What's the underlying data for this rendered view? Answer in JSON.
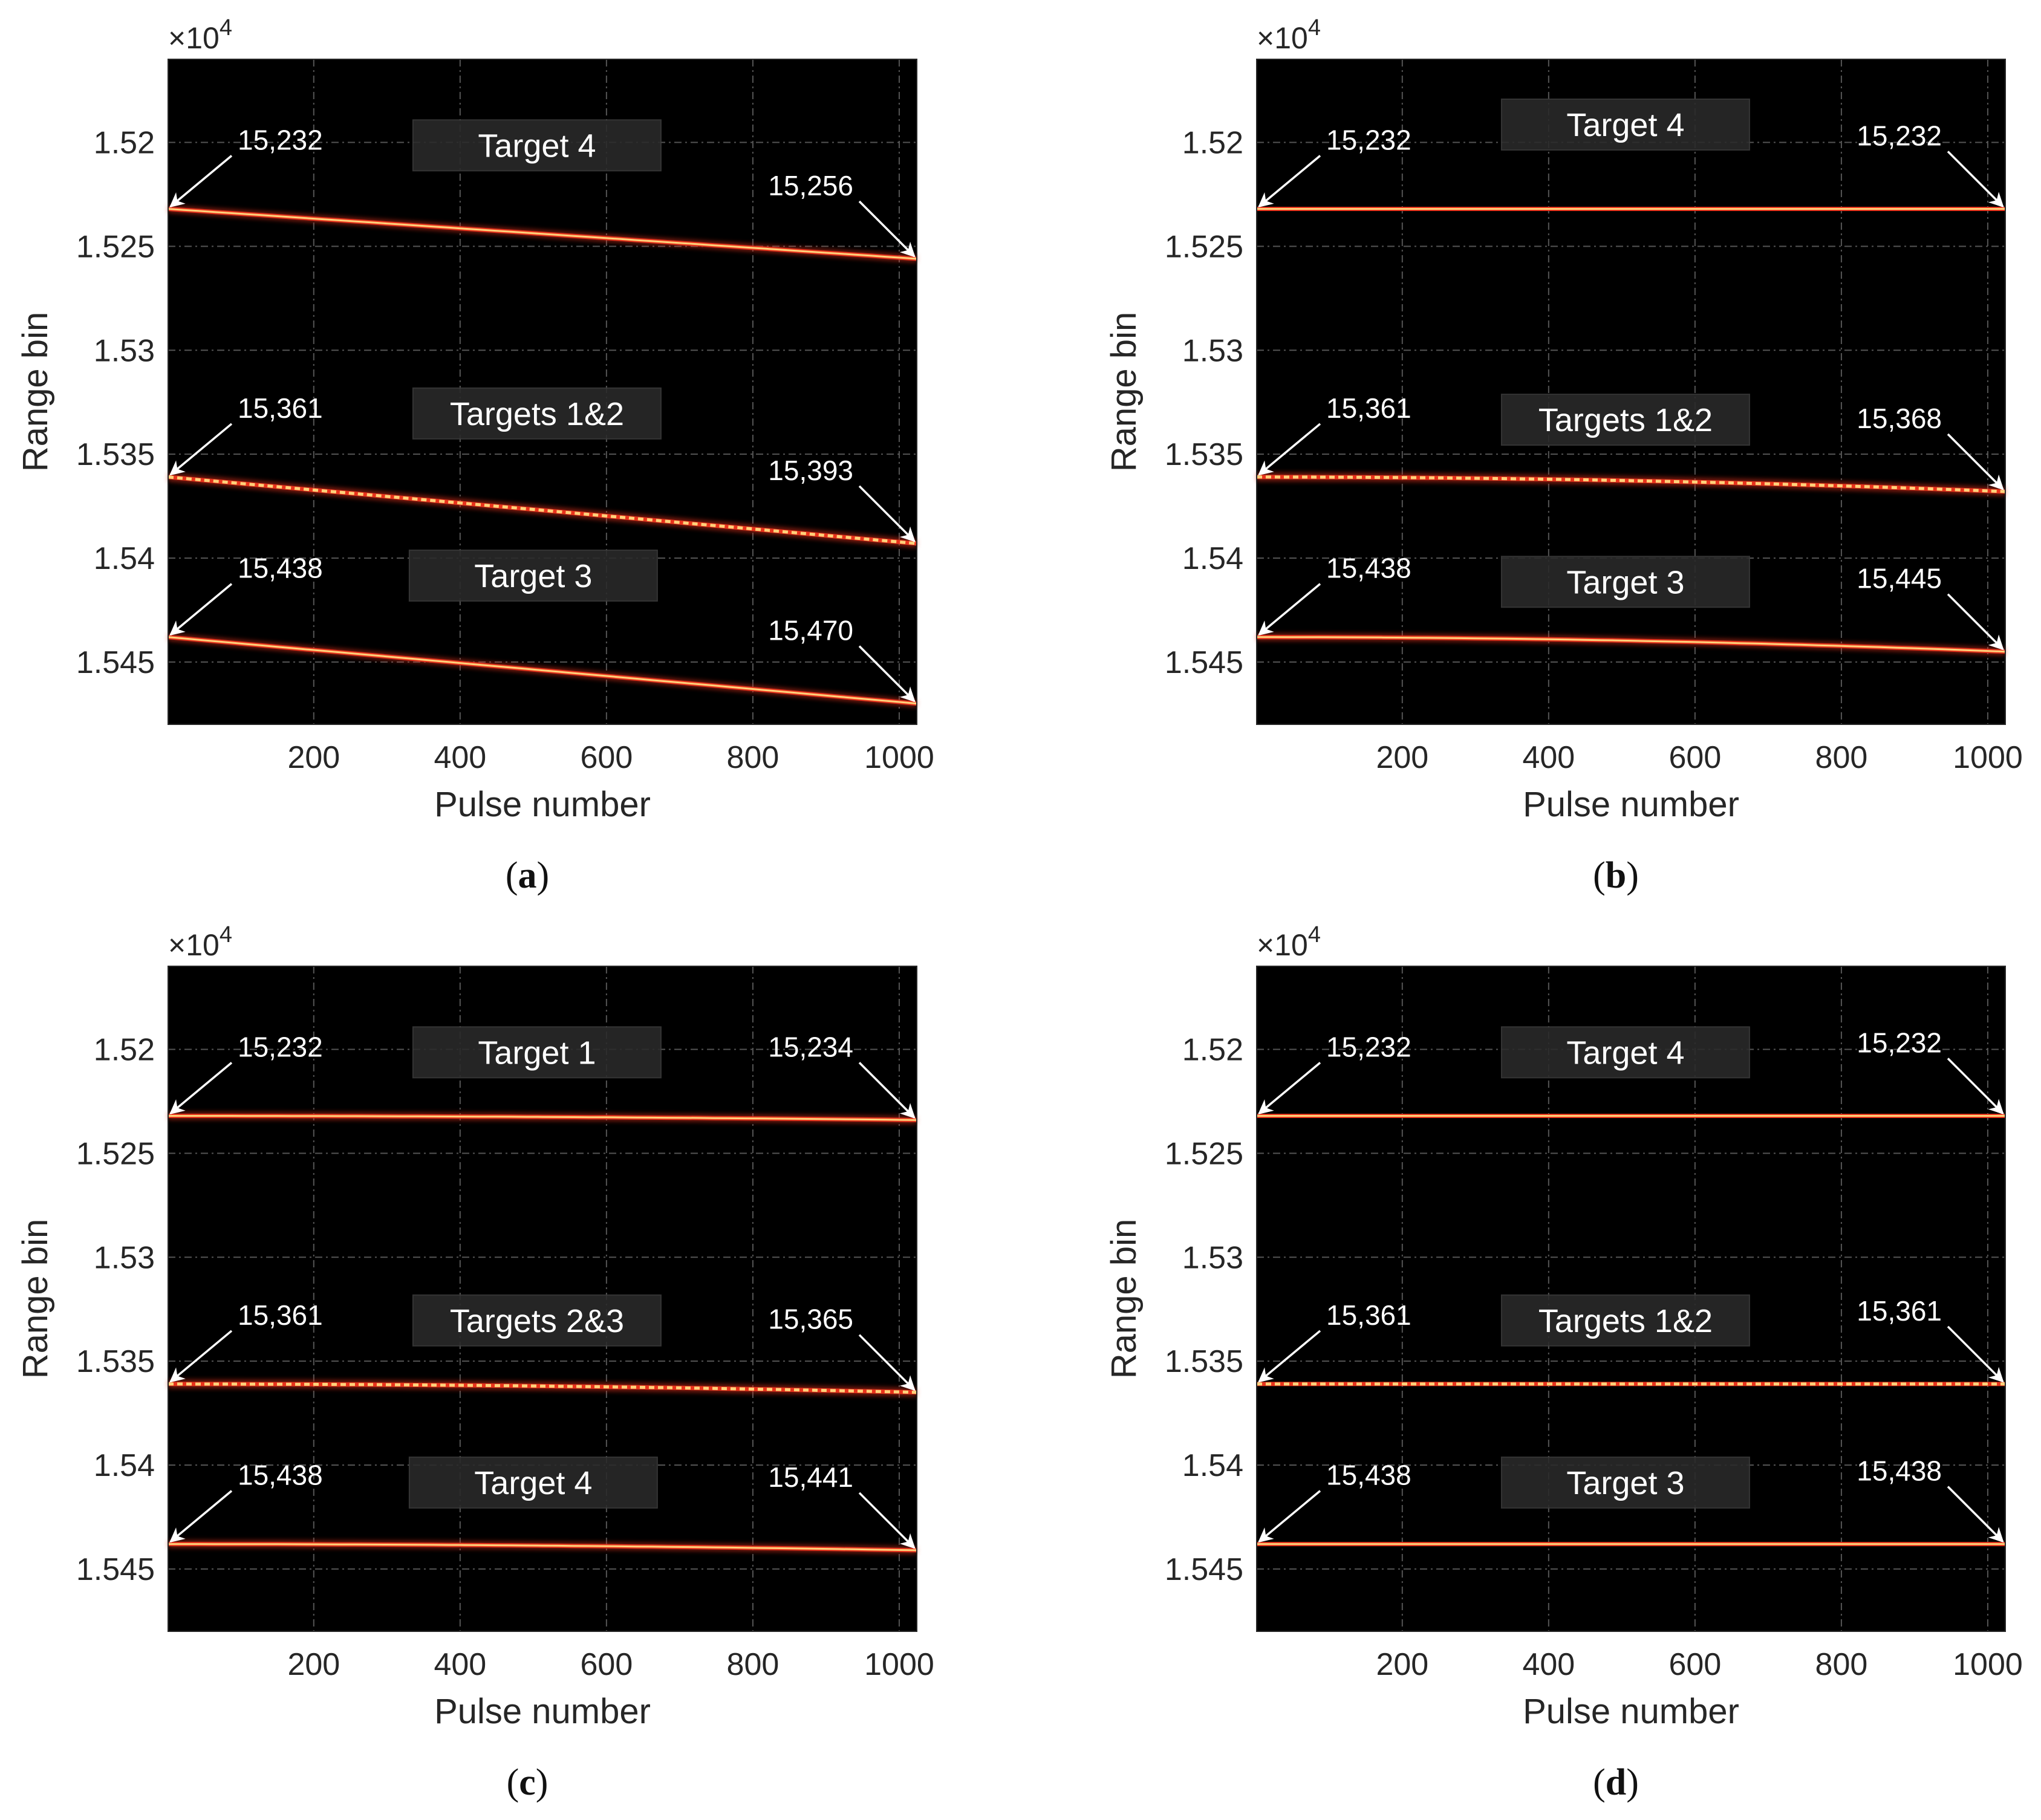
{
  "figure": {
    "colors": {
      "background": "#000000",
      "line_core": "#ffd27a",
      "line_glow": "#e8331c",
      "grid": "#6a6a6a",
      "text_on_dark": "#ffffff",
      "target_box": "#2a2a2a"
    }
  },
  "chart_data": [
    {
      "type": "heatmap",
      "id": "a",
      "caption_letter": "a",
      "xlabel": "Pulse number",
      "ylabel": "Range bin",
      "xlim": [
        1,
        1024
      ],
      "ylim": [
        15160,
        15480
      ],
      "y_exponent_label": "×10",
      "y_exponent_power": "4",
      "xticks": [
        200,
        400,
        600,
        800,
        1000
      ],
      "xtick_labels": [
        "200",
        "400",
        "600",
        "800",
        "1000"
      ],
      "yticks": [
        15200,
        15250,
        15300,
        15350,
        15400,
        15450
      ],
      "ytick_labels": [
        "1.52",
        "1.525",
        "1.53",
        "1.535",
        "1.54",
        "1.545"
      ],
      "tracks": [
        {
          "name": "Target 4",
          "start_bin": 15232,
          "end_bin": 15256,
          "start_label": "15,232",
          "end_label": "15,256",
          "label_pulse": 505,
          "label_bin": 15202,
          "style": "solid",
          "curve": 1
        },
        {
          "name": "Targets 1&2",
          "start_bin": 15361,
          "end_bin": 15393,
          "start_label": "15,361",
          "end_label": "15,393",
          "label_pulse": 505,
          "label_bin": 15331,
          "style": "dotted",
          "curve": 1
        },
        {
          "name": "Target 3",
          "start_bin": 15438,
          "end_bin": 15470,
          "start_label": "15,438",
          "end_label": "15,470",
          "label_pulse": 500,
          "label_bin": 15409,
          "style": "solid",
          "curve": 1
        }
      ]
    },
    {
      "type": "heatmap",
      "id": "b",
      "caption_letter": "b",
      "xlabel": "Pulse number",
      "ylabel": "Range bin",
      "xlim": [
        1,
        1024
      ],
      "ylim": [
        15160,
        15480
      ],
      "y_exponent_label": "×10",
      "y_exponent_power": "4",
      "xticks": [
        200,
        400,
        600,
        800,
        1000
      ],
      "xtick_labels": [
        "200",
        "400",
        "600",
        "800",
        "1000"
      ],
      "yticks": [
        15200,
        15250,
        15300,
        15350,
        15400,
        15450
      ],
      "ytick_labels": [
        "1.52",
        "1.525",
        "1.53",
        "1.535",
        "1.54",
        "1.545"
      ],
      "tracks": [
        {
          "name": "Target 4",
          "start_bin": 15232,
          "end_bin": 15232,
          "start_label": "15,232",
          "end_label": "15,232",
          "label_pulse": 505,
          "label_bin": 15192,
          "style": "solid",
          "curve": 2
        },
        {
          "name": "Targets 1&2",
          "start_bin": 15361,
          "end_bin": 15368,
          "start_label": "15,361",
          "end_label": "15,368",
          "label_pulse": 505,
          "label_bin": 15334,
          "style": "dotted",
          "curve": 2
        },
        {
          "name": "Target 3",
          "start_bin": 15438,
          "end_bin": 15445,
          "start_label": "15,438",
          "end_label": "15,445",
          "label_pulse": 505,
          "label_bin": 15412,
          "style": "solid",
          "curve": 2
        }
      ]
    },
    {
      "type": "heatmap",
      "id": "c",
      "caption_letter": "c",
      "xlabel": "Pulse number",
      "ylabel": "Range bin",
      "xlim": [
        1,
        1024
      ],
      "ylim": [
        15160,
        15480
      ],
      "y_exponent_label": "×10",
      "y_exponent_power": "4",
      "xticks": [
        200,
        400,
        600,
        800,
        1000
      ],
      "xtick_labels": [
        "200",
        "400",
        "600",
        "800",
        "1000"
      ],
      "yticks": [
        15200,
        15250,
        15300,
        15350,
        15400,
        15450
      ],
      "ytick_labels": [
        "1.52",
        "1.525",
        "1.53",
        "1.535",
        "1.54",
        "1.545"
      ],
      "tracks": [
        {
          "name": "Target 1",
          "start_bin": 15232,
          "end_bin": 15234,
          "start_label": "15,232",
          "end_label": "15,234",
          "label_pulse": 505,
          "label_bin": 15202,
          "style": "solid",
          "curve": 2
        },
        {
          "name": "Targets 2&3",
          "start_bin": 15361,
          "end_bin": 15365,
          "start_label": "15,361",
          "end_label": "15,365",
          "label_pulse": 505,
          "label_bin": 15331,
          "style": "dotted",
          "curve": 2
        },
        {
          "name": "Target 4",
          "start_bin": 15438,
          "end_bin": 15441,
          "start_label": "15,438",
          "end_label": "15,441",
          "label_pulse": 500,
          "label_bin": 15409,
          "style": "solid",
          "curve": 2
        }
      ]
    },
    {
      "type": "heatmap",
      "id": "d",
      "caption_letter": "d",
      "xlabel": "Pulse number",
      "ylabel": "Range bin",
      "xlim": [
        1,
        1024
      ],
      "ylim": [
        15160,
        15480
      ],
      "y_exponent_label": "×10",
      "y_exponent_power": "4",
      "xticks": [
        200,
        400,
        600,
        800,
        1000
      ],
      "xtick_labels": [
        "200",
        "400",
        "600",
        "800",
        "1000"
      ],
      "yticks": [
        15200,
        15250,
        15300,
        15350,
        15400,
        15450
      ],
      "ytick_labels": [
        "1.52",
        "1.525",
        "1.53",
        "1.535",
        "1.54",
        "1.545"
      ],
      "tracks": [
        {
          "name": "Target 4",
          "start_bin": 15232,
          "end_bin": 15232,
          "start_label": "15,232",
          "end_label": "15,232",
          "label_pulse": 505,
          "label_bin": 15202,
          "style": "solid",
          "curve": 1
        },
        {
          "name": "Targets 1&2",
          "start_bin": 15361,
          "end_bin": 15361,
          "start_label": "15,361",
          "end_label": "15,361",
          "label_pulse": 505,
          "label_bin": 15331,
          "style": "dotted",
          "curve": 1
        },
        {
          "name": "Target 3",
          "start_bin": 15438,
          "end_bin": 15438,
          "start_label": "15,438",
          "end_label": "15,438",
          "label_pulse": 505,
          "label_bin": 15409,
          "style": "solid",
          "curve": 1
        }
      ]
    }
  ]
}
